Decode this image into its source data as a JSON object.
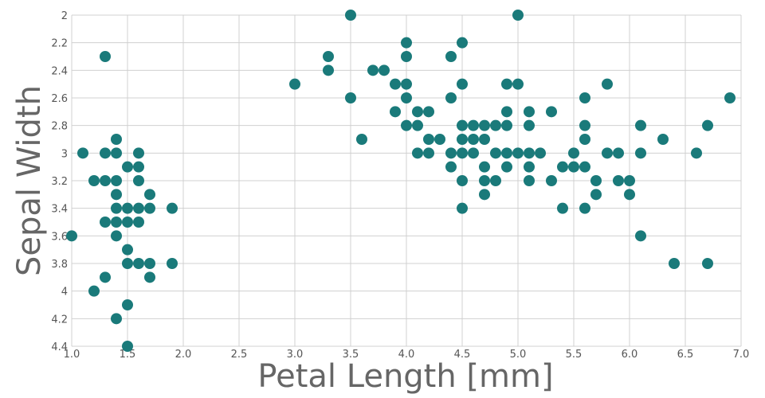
{
  "chart_data": {
    "type": "scatter",
    "title": "",
    "xlabel": "Petal Length [mm]",
    "ylabel": "Sepal Width",
    "xlim": [
      1.0,
      7.0
    ],
    "ylim": [
      2.0,
      4.4
    ],
    "y_inverted": true,
    "x_ticks": [
      "1.0",
      "1.5",
      "2.0",
      "2.5",
      "3.0",
      "3.5",
      "4.0",
      "4.5",
      "5.0",
      "5.5",
      "6.0",
      "6.5",
      "7.0"
    ],
    "y_ticks": [
      "2",
      "2.2",
      "2.4",
      "2.6",
      "2.8",
      "3",
      "3.2",
      "3.4",
      "3.6",
      "3.8",
      "4",
      "4.2",
      "4.4"
    ],
    "grid": true,
    "marker_color": "#1a7a7a",
    "points": [
      [
        1.3,
        2.3
      ],
      [
        1.1,
        3.0
      ],
      [
        1.3,
        3.0
      ],
      [
        1.4,
        3.0
      ],
      [
        1.4,
        2.9
      ],
      [
        1.2,
        3.2
      ],
      [
        1.3,
        3.2
      ],
      [
        1.4,
        3.2
      ],
      [
        1.4,
        3.3
      ],
      [
        1.4,
        3.4
      ],
      [
        1.3,
        3.5
      ],
      [
        1.4,
        3.5
      ],
      [
        1.4,
        3.6
      ],
      [
        1.0,
        3.6
      ],
      [
        1.5,
        3.1
      ],
      [
        1.5,
        3.4
      ],
      [
        1.5,
        3.5
      ],
      [
        1.5,
        3.7
      ],
      [
        1.5,
        3.8
      ],
      [
        1.6,
        3.0
      ],
      [
        1.6,
        3.1
      ],
      [
        1.6,
        3.2
      ],
      [
        1.6,
        3.4
      ],
      [
        1.6,
        3.5
      ],
      [
        1.6,
        3.8
      ],
      [
        1.7,
        3.3
      ],
      [
        1.7,
        3.4
      ],
      [
        1.7,
        3.8
      ],
      [
        1.7,
        3.9
      ],
      [
        1.9,
        3.4
      ],
      [
        1.9,
        3.8
      ],
      [
        1.3,
        3.9
      ],
      [
        1.2,
        4.0
      ],
      [
        1.5,
        4.1
      ],
      [
        1.4,
        4.2
      ],
      [
        1.5,
        4.4
      ],
      [
        3.0,
        2.5
      ],
      [
        3.3,
        2.3
      ],
      [
        3.3,
        2.4
      ],
      [
        3.5,
        2.0
      ],
      [
        3.5,
        2.6
      ],
      [
        3.6,
        2.9
      ],
      [
        3.7,
        2.4
      ],
      [
        3.8,
        2.4
      ],
      [
        3.9,
        2.5
      ],
      [
        3.9,
        2.7
      ],
      [
        4.0,
        2.2
      ],
      [
        4.0,
        2.3
      ],
      [
        4.0,
        2.5
      ],
      [
        4.0,
        2.6
      ],
      [
        4.0,
        2.8
      ],
      [
        4.1,
        2.7
      ],
      [
        4.1,
        2.8
      ],
      [
        4.1,
        3.0
      ],
      [
        4.2,
        2.7
      ],
      [
        4.2,
        2.9
      ],
      [
        4.2,
        3.0
      ],
      [
        4.3,
        2.9
      ],
      [
        4.4,
        2.3
      ],
      [
        4.4,
        2.6
      ],
      [
        4.4,
        3.0
      ],
      [
        4.4,
        3.1
      ],
      [
        4.5,
        2.2
      ],
      [
        4.5,
        2.5
      ],
      [
        4.5,
        2.8
      ],
      [
        4.5,
        2.9
      ],
      [
        4.5,
        3.0
      ],
      [
        4.5,
        3.2
      ],
      [
        4.5,
        3.4
      ],
      [
        4.6,
        2.8
      ],
      [
        4.6,
        2.9
      ],
      [
        4.6,
        3.0
      ],
      [
        4.7,
        2.8
      ],
      [
        4.7,
        2.9
      ],
      [
        4.7,
        3.1
      ],
      [
        4.7,
        3.2
      ],
      [
        4.7,
        3.3
      ],
      [
        4.8,
        2.8
      ],
      [
        4.8,
        3.0
      ],
      [
        4.8,
        3.2
      ],
      [
        4.9,
        2.5
      ],
      [
        4.9,
        2.7
      ],
      [
        4.9,
        2.8
      ],
      [
        4.9,
        3.0
      ],
      [
        4.9,
        3.1
      ],
      [
        5.0,
        2.0
      ],
      [
        5.0,
        2.5
      ],
      [
        5.0,
        3.0
      ],
      [
        5.1,
        2.7
      ],
      [
        5.1,
        2.8
      ],
      [
        5.1,
        3.0
      ],
      [
        5.1,
        3.1
      ],
      [
        5.1,
        3.2
      ],
      [
        5.2,
        3.0
      ],
      [
        5.3,
        2.7
      ],
      [
        5.3,
        3.2
      ],
      [
        5.4,
        3.1
      ],
      [
        5.4,
        3.4
      ],
      [
        5.5,
        3.0
      ],
      [
        5.5,
        3.1
      ],
      [
        5.6,
        2.6
      ],
      [
        5.6,
        2.8
      ],
      [
        5.6,
        2.9
      ],
      [
        5.6,
        3.1
      ],
      [
        5.6,
        3.4
      ],
      [
        5.7,
        3.2
      ],
      [
        5.7,
        3.3
      ],
      [
        5.8,
        2.5
      ],
      [
        5.8,
        3.0
      ],
      [
        5.9,
        3.0
      ],
      [
        5.9,
        3.2
      ],
      [
        6.0,
        3.2
      ],
      [
        6.0,
        3.3
      ],
      [
        6.1,
        2.8
      ],
      [
        6.1,
        3.0
      ],
      [
        6.1,
        3.6
      ],
      [
        6.3,
        2.9
      ],
      [
        6.4,
        3.8
      ],
      [
        6.6,
        3.0
      ],
      [
        6.7,
        2.8
      ],
      [
        6.7,
        3.8
      ],
      [
        6.9,
        2.6
      ]
    ]
  }
}
